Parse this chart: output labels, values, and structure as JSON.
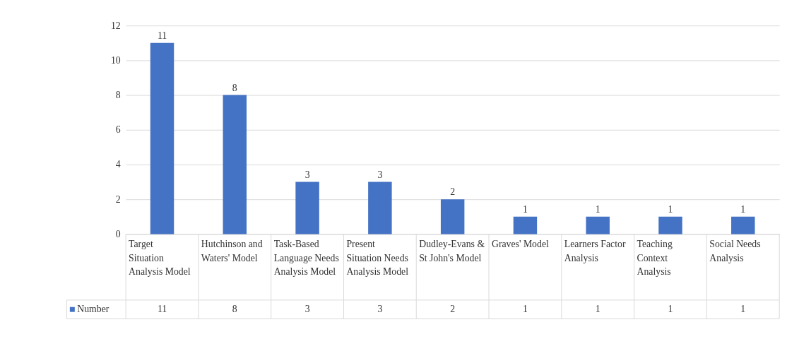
{
  "chart_data": {
    "type": "bar",
    "categories": [
      "Target Situation Analysis Model",
      "Hutchinson and Waters' Model",
      "Task-Based Language Needs Analysis Model",
      "Present Situation Needs Analysis Model",
      "Dudley-Evans & St John's Model",
      "Graves' Model",
      "Learners Factor Analysis",
      "Teaching Context Analysis",
      "Social Needs Analysis"
    ],
    "series": [
      {
        "name": "Number",
        "color": "#4472c4",
        "values": [
          11,
          8,
          3,
          3,
          2,
          1,
          1,
          1,
          1
        ],
        "value_labels": [
          "11",
          "8",
          "3",
          "3",
          "2",
          "1",
          "1",
          "1",
          "1"
        ]
      }
    ],
    "ylim": [
      0,
      12
    ],
    "yticks": [
      0,
      2,
      4,
      6,
      8,
      10,
      12
    ],
    "grid": "y",
    "data_labels": true,
    "legend": "bottom"
  }
}
